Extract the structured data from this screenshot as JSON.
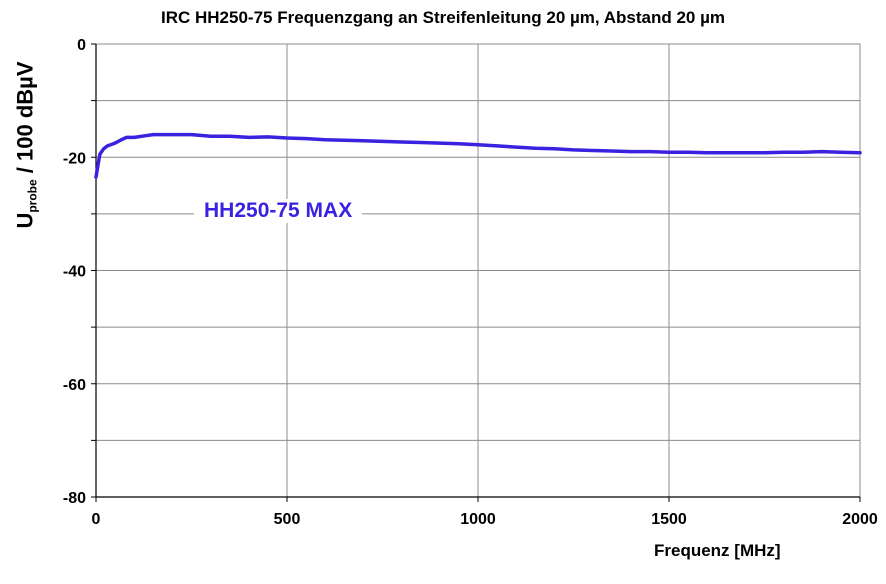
{
  "chart_data": {
    "type": "line",
    "title": "IRC HH250-75 Frequenzgang an Streifenleitung 20 µm, Abstand 20 µm",
    "xlabel": "Frequenz [MHz]",
    "ylabel_main": "U",
    "ylabel_sub": "probe",
    "ylabel_rest": " / 100 dBµV",
    "xlim": [
      0,
      2000
    ],
    "ylim": [
      -80,
      0
    ],
    "x_ticks": [
      0,
      500,
      1000,
      1500,
      2000
    ],
    "y_ticks": [
      0,
      -20,
      -40,
      -60,
      -80
    ],
    "grid": true,
    "series": [
      {
        "name": "HH250-75 MAX",
        "color": "#3a22e0",
        "x": [
          0,
          5,
          10,
          20,
          30,
          50,
          70,
          80,
          100,
          130,
          150,
          200,
          250,
          300,
          350,
          400,
          450,
          500,
          550,
          600,
          650,
          700,
          750,
          800,
          850,
          900,
          950,
          1000,
          1050,
          1100,
          1150,
          1200,
          1250,
          1300,
          1350,
          1400,
          1450,
          1500,
          1550,
          1600,
          1650,
          1700,
          1750,
          1800,
          1850,
          1900,
          1950,
          2000
        ],
        "y": [
          -23.5,
          -21.5,
          -19.5,
          -18.5,
          -18.0,
          -17.5,
          -16.8,
          -16.5,
          -16.5,
          -16.2,
          -16.0,
          -16.0,
          -16.0,
          -16.3,
          -16.3,
          -16.5,
          -16.4,
          -16.6,
          -16.7,
          -16.9,
          -17.0,
          -17.1,
          -17.2,
          -17.3,
          -17.4,
          -17.5,
          -17.6,
          -17.8,
          -18.0,
          -18.2,
          -18.4,
          -18.5,
          -18.7,
          -18.8,
          -18.9,
          -19.0,
          -19.0,
          -19.1,
          -19.1,
          -19.2,
          -19.2,
          -19.2,
          -19.2,
          -19.1,
          -19.1,
          -19.0,
          -19.1,
          -19.2
        ]
      }
    ]
  }
}
